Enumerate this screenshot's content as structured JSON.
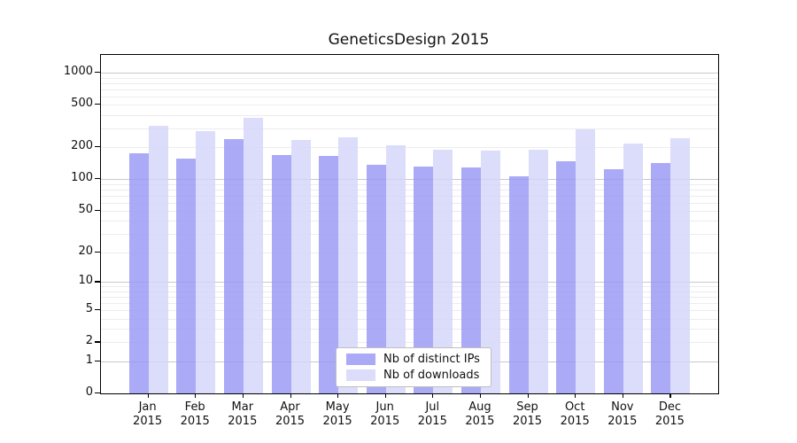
{
  "title": "GeneticsDesign 2015",
  "legend": {
    "items": [
      {
        "label": "Nb of distinct IPs",
        "color": "#aaaaf6"
      },
      {
        "label": "Nb of downloads",
        "color": "#dcdcfb"
      }
    ]
  },
  "colors": {
    "ips_bar_fill": "rgba(151,151,244,0.82)",
    "downloads_bar_fill": "rgba(212,212,250,0.82)",
    "grid_major": "#c9c9c9",
    "grid_minor": "#ececec",
    "axis": "#000000"
  },
  "chart_data": {
    "type": "bar",
    "title": "GeneticsDesign 2015",
    "scale": "log10(value+1)",
    "grid": true,
    "legend_position": "bottom-center-inside",
    "categories": [
      "Jan 2015",
      "Feb 2015",
      "Mar 2015",
      "Apr 2015",
      "May 2015",
      "Jun 2015",
      "Jul 2015",
      "Aug 2015",
      "Sep 2015",
      "Oct 2015",
      "Nov 2015",
      "Dec 2015"
    ],
    "category_lines": [
      [
        "Jan",
        "2015"
      ],
      [
        "Feb",
        "2015"
      ],
      [
        "Mar",
        "2015"
      ],
      [
        "Apr",
        "2015"
      ],
      [
        "May",
        "2015"
      ],
      [
        "Jun",
        "2015"
      ],
      [
        "Jul",
        "2015"
      ],
      [
        "Aug",
        "2015"
      ],
      [
        "Sep",
        "2015"
      ],
      [
        "Oct",
        "2015"
      ],
      [
        "Nov",
        "2015"
      ],
      [
        "Dec",
        "2015"
      ]
    ],
    "series": [
      {
        "name": "Nb of distinct IPs",
        "values": [
          175,
          156,
          238,
          170,
          167,
          137,
          131,
          129,
          107,
          147,
          123,
          142
        ]
      },
      {
        "name": "Nb of downloads",
        "values": [
          320,
          283,
          377,
          234,
          248,
          210,
          190,
          187,
          190,
          296,
          215,
          244
        ]
      }
    ],
    "yticks": [
      1000,
      500,
      200,
      100,
      50,
      20,
      10,
      5,
      2,
      1,
      0
    ],
    "ytick_major": [
      1000,
      100,
      10,
      1
    ],
    "ylim": [
      0,
      1465
    ],
    "xlabel": "",
    "ylabel": ""
  }
}
